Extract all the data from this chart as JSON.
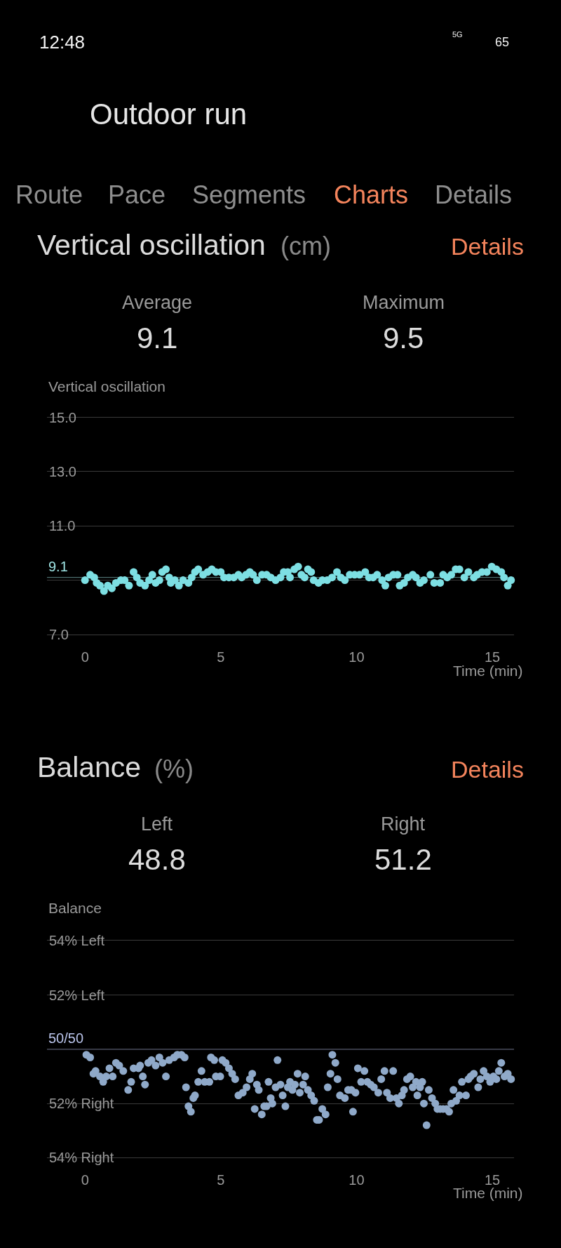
{
  "chart_data": [
    {
      "type": "scatter",
      "title": "Vertical oscillation",
      "subtitle": "(cm)",
      "ylabel": "Vertical oscillation",
      "xlabel": "Time (min)",
      "annotations": [
        "12:48",
        "5G",
        "65",
        "Outdoor run",
        "Route",
        "Pace",
        "Segments",
        "Charts",
        "Details",
        "Details",
        "Average",
        "9.1",
        "Maximum",
        "9.5"
      ],
      "x": [
        0,
        0.19,
        0.34,
        0.43,
        0.55,
        0.7,
        0.84,
        0.99,
        1.14,
        1.32,
        1.46,
        1.62,
        1.79,
        1.91,
        2.03,
        2.21,
        2.36,
        2.48,
        2.6,
        2.74,
        2.84,
        2.98,
        3.1,
        3.16,
        3.31,
        3.46,
        3.61,
        3.81,
        3.93,
        4.05,
        4.17,
        4.35,
        4.52,
        4.67,
        4.82,
        5,
        5.12,
        5.3,
        5.48,
        5.65,
        5.77,
        5.93,
        6.07,
        6.19,
        6.33,
        6.52,
        6.69,
        6.84,
        7.02,
        7.2,
        7.32,
        7.47,
        7.55,
        7.71,
        7.85,
        7.97,
        8.09,
        8.21,
        8.33,
        8.42,
        8.6,
        8.74,
        8.92,
        9.1,
        9.28,
        9.42,
        9.57,
        9.75,
        9.93,
        10.11,
        10.32,
        10.46,
        10.61,
        10.76,
        10.94,
        11.06,
        11.18,
        11.35,
        11.51,
        11.59,
        11.75,
        11.89,
        12.07,
        12.19,
        12.34,
        12.48,
        12.72,
        12.86,
        13.08,
        13.19,
        13.34,
        13.49,
        13.65,
        13.79,
        13.97,
        14.12,
        14.32,
        14.44,
        14.62,
        14.8,
        14.98,
        15.15,
        15.33,
        15.43,
        15.57,
        15.69
      ],
      "values": [
        9.0,
        9.2,
        9.1,
        8.9,
        8.8,
        8.6,
        8.8,
        8.7,
        8.9,
        9.0,
        9.0,
        8.8,
        9.3,
        9.1,
        8.9,
        8.8,
        9.0,
        9.2,
        8.9,
        9.0,
        9.3,
        9.4,
        9.1,
        8.9,
        9.0,
        8.8,
        9.0,
        8.9,
        9.1,
        9.3,
        9.4,
        9.2,
        9.3,
        9.4,
        9.3,
        9.3,
        9.1,
        9.1,
        9.1,
        9.2,
        9.1,
        9.2,
        9.3,
        9.2,
        9.0,
        9.2,
        9.2,
        9.1,
        9.0,
        9.1,
        9.3,
        9.3,
        9.1,
        9.4,
        9.5,
        9.2,
        9.1,
        9.4,
        9.3,
        9.0,
        8.9,
        9.0,
        9.0,
        9.1,
        9.3,
        9.1,
        9.0,
        9.2,
        9.2,
        9.2,
        9.3,
        9.1,
        9.1,
        9.2,
        9.0,
        8.8,
        9.1,
        9.2,
        9.2,
        8.8,
        8.9,
        9.1,
        9.2,
        9.1,
        8.9,
        9.0,
        9.2,
        8.9,
        8.9,
        9.2,
        9.1,
        9.2,
        9.4,
        9.4,
        9.1,
        9.3,
        9.1,
        9.2,
        9.3,
        9.3,
        9.5,
        9.4,
        9.3,
        9.1,
        8.8,
        9.0
      ],
      "color": "#7ddfe3",
      "marker": "circle",
      "xlim": [
        -1.4,
        15.8
      ],
      "xticks": [
        0,
        5,
        10,
        15
      ],
      "ylim": [
        7,
        15
      ],
      "yticks": [
        {
          "value": 7,
          "label": "7.0"
        },
        {
          "value": 9,
          "label": null
        },
        {
          "value": 11,
          "label": "11.0"
        },
        {
          "value": 13,
          "label": "13.0"
        },
        {
          "value": 15,
          "label": "15.0"
        }
      ],
      "ref_lines": [
        {
          "axis": "y",
          "value": 9.1,
          "label": "9.1",
          "color": "#9ee3e3"
        }
      ],
      "grid": "y"
    },
    {
      "type": "scatter",
      "title": "Balance",
      "subtitle": "(%)",
      "ylabel": "Balance",
      "xlabel": "Time (min)",
      "annotations": [
        "Details",
        "Left",
        "48.8",
        "Right",
        "51.2"
      ],
      "x": [
        0.05,
        0.19,
        0.31,
        0.39,
        0.55,
        0.67,
        0.78,
        0.9,
        1.02,
        1.14,
        1.26,
        1.41,
        1.59,
        1.7,
        1.79,
        1.97,
        2.03,
        2.13,
        2.21,
        2.33,
        2.45,
        2.6,
        2.74,
        2.86,
        2.98,
        3.1,
        3.28,
        3.4,
        3.55,
        3.67,
        3.72,
        3.81,
        3.9,
        3.99,
        4.05,
        4.17,
        4.29,
        4.41,
        4.58,
        4.64,
        4.76,
        4.82,
        4.98,
        5.06,
        5.18,
        5.3,
        5.42,
        5.53,
        5.65,
        5.81,
        5.95,
        6.07,
        6.16,
        6.25,
        6.33,
        6.4,
        6.51,
        6.6,
        6.69,
        6.76,
        6.84,
        6.9,
        7.02,
        7.09,
        7.2,
        7.28,
        7.38,
        7.47,
        7.55,
        7.64,
        7.73,
        7.83,
        7.91,
        8.03,
        8.11,
        8.21,
        8.33,
        8.44,
        8.54,
        8.62,
        8.74,
        8.86,
        8.94,
        9.04,
        9.11,
        9.22,
        9.3,
        9.39,
        9.57,
        9.69,
        9.81,
        9.87,
        9.96,
        10.05,
        10.17,
        10.29,
        10.4,
        10.52,
        10.64,
        10.8,
        10.91,
        11.03,
        11.12,
        11.24,
        11.35,
        11.47,
        11.56,
        11.67,
        11.75,
        11.86,
        11.98,
        12.07,
        12.19,
        12.24,
        12.34,
        12.42,
        12.48,
        12.58,
        12.66,
        12.78,
        12.9,
        12.98,
        13.08,
        13.19,
        13.31,
        13.41,
        13.49,
        13.57,
        13.67,
        13.79,
        13.88,
        14.03,
        14.12,
        14.2,
        14.32,
        14.48,
        14.56,
        14.68,
        14.8,
        14.92,
        15.04,
        15.15,
        15.24,
        15.33,
        15.45,
        15.57,
        15.69
      ],
      "values": [
        49.8,
        49.7,
        49.1,
        49.2,
        49.0,
        48.8,
        49.0,
        49.3,
        49.0,
        49.5,
        49.4,
        49.2,
        48.5,
        48.8,
        49.3,
        49.3,
        49.4,
        49.0,
        48.7,
        49.5,
        49.6,
        49.4,
        49.7,
        49.5,
        49.0,
        49.6,
        49.7,
        49.8,
        49.8,
        49.7,
        48.6,
        47.9,
        47.7,
        48.2,
        48.3,
        48.8,
        49.2,
        48.8,
        48.8,
        49.7,
        49.6,
        49.0,
        49.0,
        49.6,
        49.5,
        49.3,
        49.1,
        48.9,
        48.3,
        48.4,
        48.6,
        48.9,
        49.1,
        47.8,
        48.7,
        48.5,
        47.6,
        47.9,
        47.9,
        48.8,
        48.2,
        48.0,
        48.6,
        49.6,
        48.7,
        48.3,
        47.9,
        48.6,
        48.8,
        48.5,
        48.7,
        49.1,
        48.4,
        48.7,
        49.0,
        48.5,
        48.3,
        48.1,
        47.4,
        47.4,
        47.8,
        47.6,
        48.6,
        49.1,
        49.8,
        49.5,
        48.9,
        48.3,
        48.2,
        48.5,
        48.5,
        47.7,
        48.4,
        49.3,
        48.8,
        49.2,
        48.8,
        48.7,
        48.6,
        48.4,
        48.9,
        49.2,
        48.4,
        48.2,
        49.2,
        48.2,
        48.0,
        48.3,
        48.5,
        48.9,
        49.0,
        48.6,
        48.8,
        48.3,
        48.6,
        48.8,
        48.0,
        47.2,
        48.5,
        48.2,
        48.0,
        47.8,
        47.8,
        47.8,
        47.8,
        47.7,
        48.0,
        48.5,
        48.1,
        48.3,
        48.8,
        48.3,
        48.9,
        49.0,
        49.1,
        48.6,
        48.9,
        49.2,
        49.0,
        48.8,
        49.0,
        48.9,
        49.2,
        49.5,
        49.0,
        49.1,
        48.9
      ],
      "color": "#8fa9c9",
      "marker": "circle",
      "xlim": [
        -1.4,
        15.8
      ],
      "xticks": [
        0,
        5,
        10,
        15
      ],
      "ylim": [
        46,
        54
      ],
      "yticks": [
        {
          "value": 52,
          "label": "52% Left"
        },
        {
          "value": 54,
          "label": "54% Left"
        }
      ],
      "y2lim": [
        54,
        46
      ],
      "y2ticks": [
        {
          "value": 54,
          "label": "54% Right"
        },
        {
          "value": 52,
          "label": "52% Right"
        }
      ],
      "ref_lines": [
        {
          "axis": "y",
          "value": 50,
          "label": "50/50",
          "color": "#b9c3ea"
        }
      ],
      "grid": "y"
    }
  ]
}
